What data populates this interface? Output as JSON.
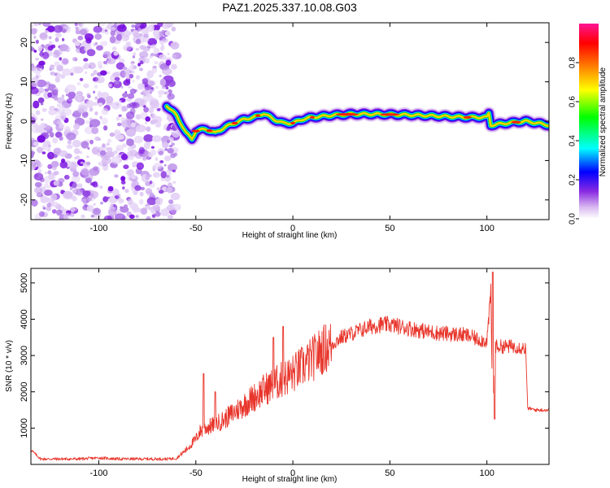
{
  "title": "PAZ1.2025.337.10.08.G03",
  "colors": {
    "snr_line": "#e8352b",
    "frame": "#000000",
    "background": "#ffffff"
  },
  "chart_data": [
    {
      "type": "heatmap",
      "name": "spectrogram",
      "xlabel": "Height of straight line (km)",
      "ylabel": "Frequency (Hz)",
      "xlim": [
        -135,
        132
      ],
      "ylim": [
        -25,
        25
      ],
      "xticks": [
        -100,
        -50,
        0,
        50,
        100
      ],
      "yticks": [
        -20,
        -10,
        0,
        10,
        20
      ],
      "noise_region_x": [
        -135,
        -63
      ],
      "ridge": {
        "x": [
          -65,
          -60,
          -55,
          -52,
          -50,
          -45,
          -40,
          -35,
          -30,
          -25,
          -20,
          -15,
          -10,
          -5,
          0,
          5,
          10,
          20,
          30,
          40,
          50,
          60,
          70,
          80,
          90,
          100,
          101,
          102,
          110,
          120,
          132
        ],
        "freq_hz": [
          4,
          1.5,
          -3,
          -4.5,
          -2.5,
          -2,
          -3,
          -1.5,
          -0.5,
          0.5,
          1,
          2,
          0.5,
          -0.5,
          -0.5,
          0.5,
          1,
          1.5,
          1.8,
          1.8,
          1.7,
          1.6,
          1.4,
          1.2,
          1,
          1,
          2,
          -1,
          -0.5,
          0,
          -1
        ]
      },
      "colorbar": {
        "label": "Normalized spectral amplitude",
        "ticks": [
          0.0,
          0.2,
          0.4,
          0.6,
          0.8
        ],
        "range": [
          0,
          1
        ],
        "colors": [
          "#ffffff",
          "#d8b8f0",
          "#8a2be2",
          "#0000ff",
          "#00ffff",
          "#00ff00",
          "#ffff00",
          "#ff7f00",
          "#ff0000",
          "#ff1493"
        ]
      }
    },
    {
      "type": "line",
      "name": "snr",
      "xlabel": "Height of straight line (km)",
      "ylabel": "SNR (10 * v/v)",
      "xlim": [
        -135,
        132
      ],
      "ylim": [
        0,
        5400
      ],
      "xticks": [
        -100,
        -50,
        0,
        50,
        100
      ],
      "yticks": [
        1000,
        2000,
        3000,
        4000,
        5000
      ],
      "series": [
        {
          "name": "SNR",
          "x": [
            -135,
            -130,
            -120,
            -110,
            -100,
            -90,
            -80,
            -70,
            -65,
            -60,
            -55,
            -50,
            -48,
            -45,
            -40,
            -35,
            -30,
            -25,
            -20,
            -15,
            -10,
            -5,
            0,
            5,
            10,
            15,
            20,
            25,
            30,
            35,
            40,
            45,
            50,
            55,
            60,
            65,
            70,
            75,
            80,
            85,
            90,
            95,
            100,
            102,
            103,
            104,
            105,
            110,
            115,
            119,
            120,
            121,
            125,
            132
          ],
          "y": [
            400,
            150,
            150,
            150,
            180,
            150,
            150,
            150,
            150,
            170,
            400,
            700,
            900,
            1000,
            1100,
            1250,
            1450,
            1650,
            1850,
            2050,
            2200,
            2350,
            2500,
            2700,
            2900,
            3150,
            3300,
            3500,
            3600,
            3700,
            3800,
            3850,
            3850,
            3800,
            3750,
            3700,
            3650,
            3620,
            3600,
            3580,
            3550,
            3450,
            3400,
            4700,
            1200,
            3300,
            3250,
            3250,
            3250,
            3200,
            3200,
            1550,
            1500,
            1500
          ]
        }
      ],
      "spikes": [
        {
          "x": -46,
          "y": 2500
        },
        {
          "x": -40,
          "y": 2000
        },
        {
          "x": -10,
          "y": 3500
        },
        {
          "x": -5,
          "y": 3800
        },
        {
          "x": 103,
          "y": 5300
        },
        {
          "x": 104,
          "y": 1250
        }
      ]
    }
  ]
}
